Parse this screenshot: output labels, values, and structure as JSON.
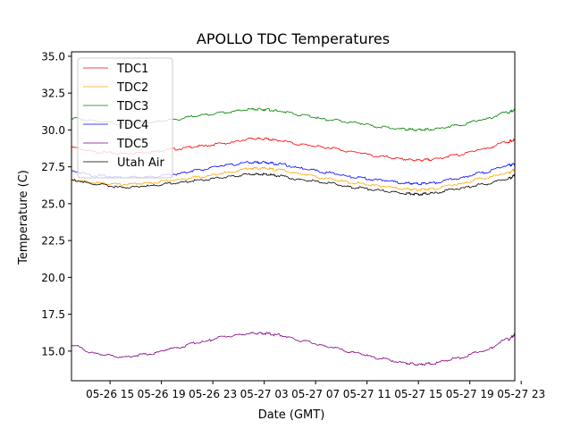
{
  "chart_data": {
    "type": "line",
    "title": "APOLLO TDC Temperatures",
    "xlabel": "Date (GMT)",
    "ylabel": "Temperature (C)",
    "xlim": [
      0,
      34.5
    ],
    "ylim": [
      12.99,
      35.3
    ],
    "grid": false,
    "legend_position": "top-left",
    "x_ticks": [
      {
        "value": 3,
        "label": "05-26 15"
      },
      {
        "value": 7,
        "label": "05-26 19"
      },
      {
        "value": 11,
        "label": "05-26 23"
      },
      {
        "value": 15,
        "label": "05-27 03"
      },
      {
        "value": 19,
        "label": "05-27 07"
      },
      {
        "value": 23,
        "label": "05-27 11"
      },
      {
        "value": 27,
        "label": "05-27 15"
      },
      {
        "value": 31,
        "label": "05-27 19"
      },
      {
        "value": 35,
        "label": "05-27 23"
      }
    ],
    "y_ticks": [
      15.0,
      17.5,
      20.0,
      22.5,
      25.0,
      27.5,
      30.0,
      32.5,
      35.0
    ],
    "y_tick_labels": [
      "15.0",
      "17.5",
      "20.0",
      "22.5",
      "25.0",
      "27.5",
      "30.0",
      "32.5",
      "35.0"
    ],
    "x": [
      0,
      2,
      4,
      6,
      8,
      10,
      12,
      14,
      15,
      16,
      18,
      20,
      22,
      24,
      26,
      27,
      28,
      30,
      32,
      34,
      34.5
    ],
    "series": [
      {
        "name": "TDC1",
        "color": "#ff0000",
        "values": [
          28.8,
          28.5,
          28.4,
          28.5,
          28.7,
          28.9,
          29.1,
          29.4,
          29.4,
          29.3,
          29.0,
          28.8,
          28.5,
          28.2,
          28.0,
          27.95,
          28.0,
          28.3,
          28.7,
          29.2,
          29.3
        ]
      },
      {
        "name": "TDC2",
        "color": "#ffa500",
        "values": [
          26.6,
          26.4,
          26.3,
          26.4,
          26.6,
          26.8,
          27.1,
          27.4,
          27.4,
          27.3,
          27.0,
          26.7,
          26.4,
          26.2,
          26.0,
          25.95,
          26.0,
          26.3,
          26.7,
          27.1,
          27.3
        ]
      },
      {
        "name": "TDC3",
        "color": "#008000",
        "values": [
          30.8,
          30.6,
          30.4,
          30.5,
          30.7,
          31.0,
          31.2,
          31.4,
          31.4,
          31.3,
          31.0,
          30.7,
          30.5,
          30.2,
          30.05,
          30.0,
          30.05,
          30.3,
          30.7,
          31.2,
          31.35
        ]
      },
      {
        "name": "TDC4",
        "color": "#0000ff",
        "values": [
          27.2,
          26.9,
          26.8,
          26.8,
          27.0,
          27.3,
          27.6,
          27.8,
          27.8,
          27.7,
          27.4,
          27.1,
          26.8,
          26.6,
          26.4,
          26.35,
          26.4,
          26.7,
          27.1,
          27.6,
          27.7
        ]
      },
      {
        "name": "TDC5",
        "color": "#800080",
        "values": [
          15.4,
          14.8,
          14.6,
          14.8,
          15.2,
          15.6,
          16.0,
          16.2,
          16.2,
          16.1,
          15.7,
          15.3,
          14.9,
          14.5,
          14.2,
          14.1,
          14.15,
          14.5,
          15.0,
          15.8,
          16.1
        ]
      },
      {
        "name": "Utah Air",
        "color": "#000000",
        "values": [
          26.6,
          26.3,
          26.1,
          26.2,
          26.4,
          26.6,
          26.8,
          27.0,
          27.0,
          26.9,
          26.6,
          26.4,
          26.1,
          25.9,
          25.7,
          25.65,
          25.7,
          26.0,
          26.3,
          26.7,
          26.9
        ]
      }
    ]
  }
}
